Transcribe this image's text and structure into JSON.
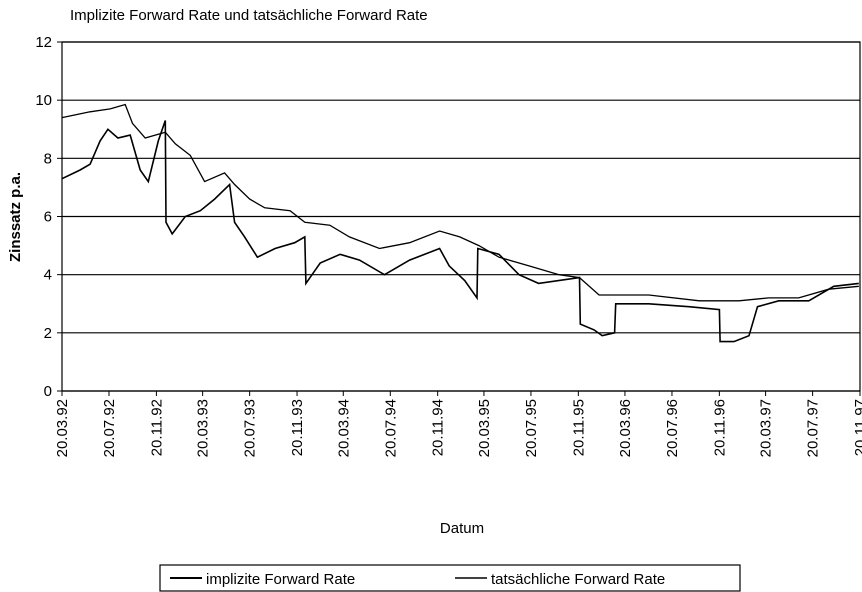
{
  "chart_data": {
    "type": "line",
    "title": "Implizite Forward Rate und tatsächliche Forward Rate",
    "y_label": "Zinssatz p.a.",
    "x_label": "Datum",
    "ylim": [
      0,
      12
    ],
    "yticks": [
      0,
      2,
      4,
      6,
      8,
      10,
      12
    ],
    "xlim": [
      "20.03.92",
      "20.11.97"
    ],
    "xticks": [
      "20.03.92",
      "20.07.92",
      "20.11.92",
      "20.03.93",
      "20.07.93",
      "20.11.93",
      "20.03.94",
      "20.07.94",
      "20.11.94",
      "20.03.95",
      "20.07.95",
      "20.11.95",
      "20.03.96",
      "20.07.96",
      "20.11.96",
      "20.03.97",
      "20.07.97",
      "20.11.97"
    ],
    "grid": true,
    "legend": "bottom",
    "series": [
      {
        "name": "implizite Forward Rate",
        "color": "#000000",
        "x": [
          "20.03.92",
          "06.05.92",
          "01.06.92",
          "27.06.92",
          "17.07.92",
          "12.08.92",
          "13.09.92",
          "09.10.92",
          "30.10.92",
          "25.11.92",
          "13.12.92",
          "15.12.92",
          "31.12.92",
          "03.02.93",
          "14.03.93",
          "20.04.93",
          "29.05.93",
          "11.06.93",
          "07.07.93",
          "09.08.93",
          "24.09.93",
          "14.11.93",
          "10.12.93",
          "13.12.93",
          "19.01.94",
          "12.03.94",
          "01.05.94",
          "05.07.94",
          "08.09.94",
          "25.11.94",
          "20.12.94",
          "29.01.95",
          "02.03.95",
          "04.03.95",
          "28.04.95",
          "19.06.95",
          "09.08.95",
          "23.11.95",
          "25.11.95",
          "31.12.95",
          "21.01.96",
          "22.02.96",
          "25.02.96",
          "21.05.96",
          "02.09.96",
          "20.11.96",
          "22.11.96",
          "28.12.96",
          "05.02.97",
          "27.02.97",
          "23.04.97",
          "10.07.97",
          "13.09.97",
          "17.11.97"
        ],
        "values": [
          7.3,
          7.6,
          7.8,
          8.6,
          9.0,
          8.7,
          8.8,
          7.6,
          7.2,
          8.6,
          9.3,
          5.8,
          5.4,
          6.0,
          6.2,
          6.6,
          7.1,
          5.8,
          5.3,
          4.6,
          4.9,
          5.1,
          5.3,
          3.7,
          4.4,
          4.7,
          4.5,
          4.0,
          4.5,
          4.9,
          4.3,
          3.8,
          3.2,
          4.9,
          4.7,
          4.0,
          3.7,
          3.9,
          2.3,
          2.1,
          1.9,
          2.0,
          3.0,
          3.0,
          2.9,
          2.8,
          1.7,
          1.7,
          1.9,
          2.9,
          3.1,
          3.1,
          3.6,
          3.7
        ]
      },
      {
        "name": "tatsächliche Forward Rate",
        "color": "#000000",
        "x": [
          "20.03.92",
          "01.06.92",
          "23.07.92",
          "31.08.92",
          "19.09.92",
          "22.10.92",
          "13.12.92",
          "08.01.93",
          "16.02.93",
          "25.03.93",
          "16.05.93",
          "11.06.93",
          "20.07.93",
          "28.08.93",
          "02.11.93",
          "10.12.93",
          "13.02.94",
          "05.04.94",
          "22.06.94",
          "08.09.94",
          "25.11.94",
          "16.01.95",
          "07.03.95",
          "28.04.95",
          "15.07.95",
          "01.10.95",
          "23.11.95",
          "13.01.96",
          "21.05.96",
          "29.09.96",
          "10.01.97",
          "28.03.97",
          "14.06.97",
          "31.08.97",
          "17.11.97"
        ],
        "values": [
          9.4,
          9.6,
          9.7,
          9.85,
          9.2,
          8.7,
          8.9,
          8.5,
          8.1,
          7.2,
          7.5,
          7.1,
          6.6,
          6.3,
          6.2,
          5.8,
          5.7,
          5.3,
          4.9,
          5.1,
          5.5,
          5.3,
          5.0,
          4.6,
          4.3,
          4.0,
          3.9,
          3.3,
          3.3,
          3.1,
          3.1,
          3.2,
          3.2,
          3.5,
          3.6
        ]
      }
    ]
  }
}
